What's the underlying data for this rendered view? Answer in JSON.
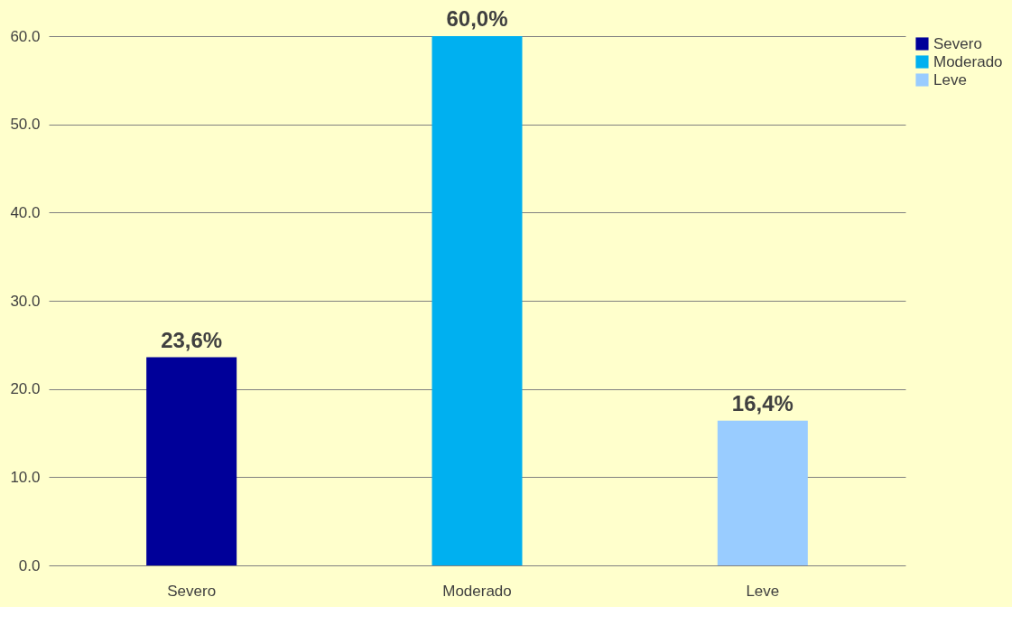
{
  "chart_data": {
    "type": "bar",
    "categories": [
      "Severo",
      "Moderado",
      "Leve"
    ],
    "series": [
      {
        "name": "Severo",
        "color": "#000099",
        "values": [
          23.6,
          null,
          null
        ],
        "value_labels": [
          "23,6%",
          null,
          null
        ]
      },
      {
        "name": "Moderado",
        "color": "#00b0f0",
        "values": [
          null,
          60.0,
          null
        ],
        "value_labels": [
          null,
          "60,0%",
          null
        ]
      },
      {
        "name": "Leve",
        "color": "#99ccff",
        "values": [
          null,
          null,
          16.4
        ],
        "value_labels": [
          null,
          null,
          "16,4%"
        ]
      }
    ],
    "ylim": [
      0,
      60
    ],
    "yticks": [
      {
        "value": 0,
        "label": "0.0"
      },
      {
        "value": 10,
        "label": "10.0"
      },
      {
        "value": 20,
        "label": "20.0"
      },
      {
        "value": 30,
        "label": "30.0"
      },
      {
        "value": 40,
        "label": "40.0"
      },
      {
        "value": 50,
        "label": "50.0"
      },
      {
        "value": 60,
        "label": "60.0"
      }
    ],
    "grid": "y",
    "legend": "right"
  }
}
